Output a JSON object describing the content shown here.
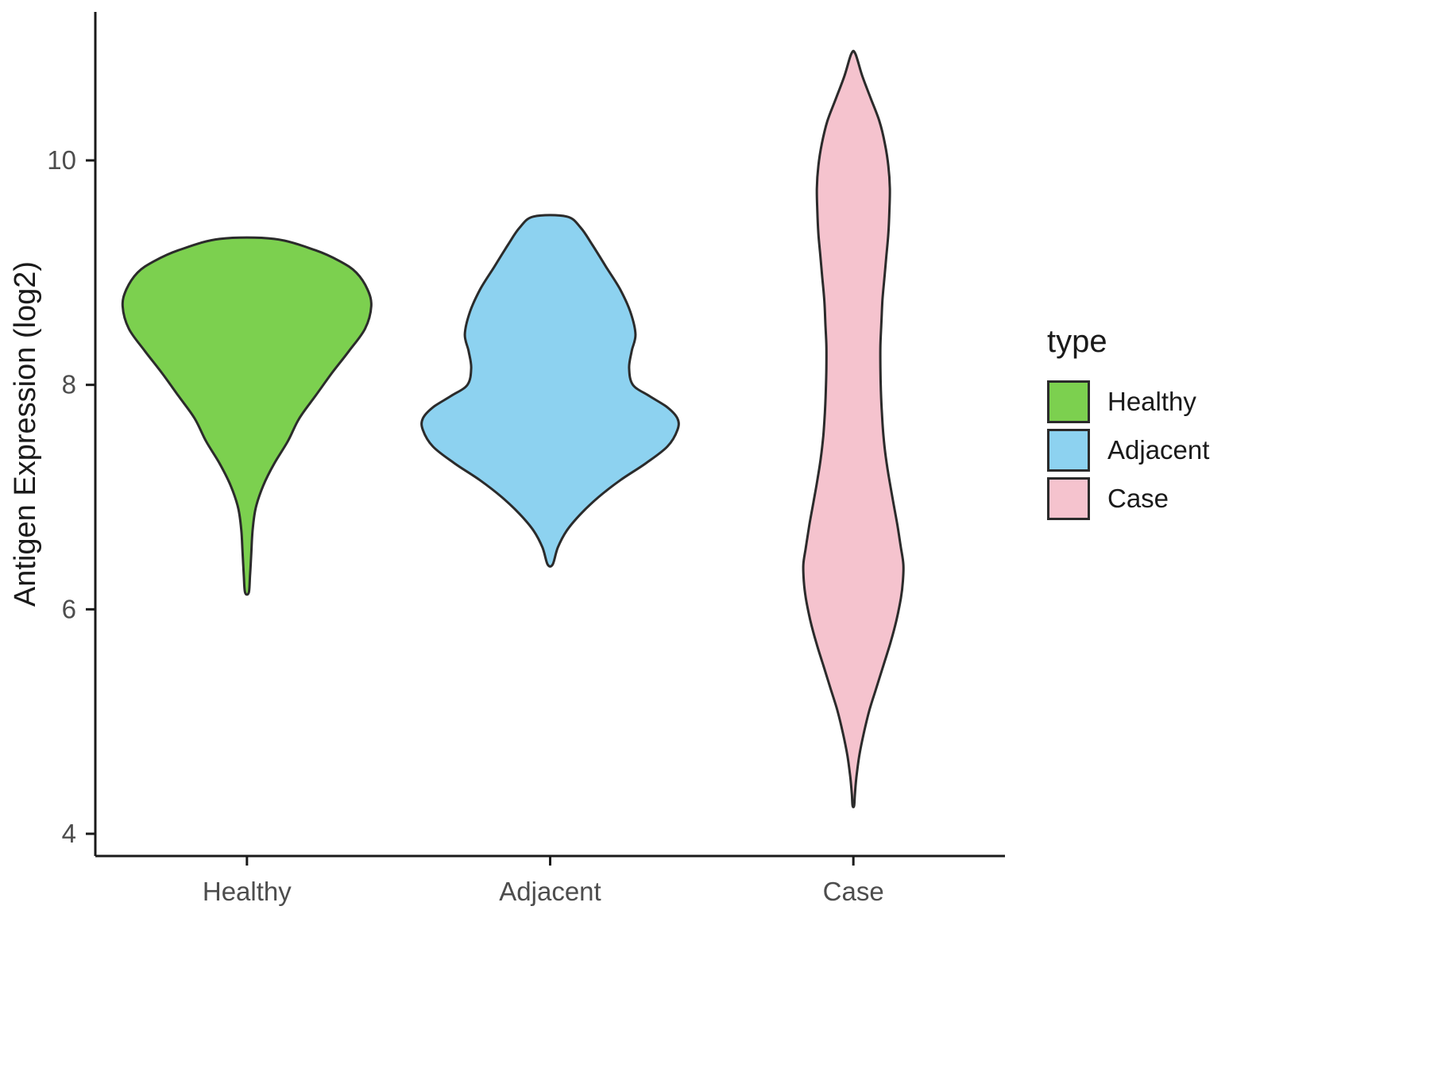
{
  "chart_data": {
    "type": "violin",
    "title": "",
    "xlabel": "",
    "ylabel": "Antigen Expression (log2)",
    "categories": [
      "Healthy",
      "Adjacent",
      "Case"
    ],
    "ylim": [
      3.8,
      11.3
    ],
    "yticks": [
      4,
      6,
      8,
      10
    ],
    "grid": false,
    "axis_color": "#1a1a1a",
    "tick_text_color": "#4d4d4d",
    "stroke_color": "#2b2b2b",
    "legend": {
      "title": "type",
      "position": "right",
      "entries": [
        {
          "label": "Healthy",
          "color": "#7CD04F"
        },
        {
          "label": "Adjacent",
          "color": "#8DD2F0"
        },
        {
          "label": "Case",
          "color": "#F5C3CE"
        }
      ]
    },
    "violins": [
      {
        "name": "Healthy",
        "color": "#7CD04F",
        "max_width": 0.82,
        "points": [
          [
            9.3,
            0.22
          ],
          [
            9.2,
            0.55
          ],
          [
            9.1,
            0.75
          ],
          [
            9.0,
            0.88
          ],
          [
            8.85,
            0.97
          ],
          [
            8.7,
            1.0
          ],
          [
            8.5,
            0.95
          ],
          [
            8.3,
            0.82
          ],
          [
            8.1,
            0.68
          ],
          [
            7.9,
            0.55
          ],
          [
            7.7,
            0.42
          ],
          [
            7.5,
            0.33
          ],
          [
            7.3,
            0.22
          ],
          [
            7.1,
            0.13
          ],
          [
            6.9,
            0.07
          ],
          [
            6.7,
            0.045
          ],
          [
            6.5,
            0.035
          ],
          [
            6.3,
            0.025
          ],
          [
            6.15,
            0.015
          ]
        ]
      },
      {
        "name": "Adjacent",
        "color": "#8DD2F0",
        "max_width": 0.84,
        "points": [
          [
            9.5,
            0.13
          ],
          [
            9.4,
            0.24
          ],
          [
            9.25,
            0.33
          ],
          [
            9.05,
            0.44
          ],
          [
            8.85,
            0.55
          ],
          [
            8.65,
            0.63
          ],
          [
            8.45,
            0.67
          ],
          [
            8.3,
            0.64
          ],
          [
            8.15,
            0.62
          ],
          [
            8.0,
            0.65
          ],
          [
            7.9,
            0.78
          ],
          [
            7.8,
            0.92
          ],
          [
            7.7,
            1.0
          ],
          [
            7.6,
            1.0
          ],
          [
            7.45,
            0.92
          ],
          [
            7.3,
            0.75
          ],
          [
            7.15,
            0.55
          ],
          [
            7.0,
            0.38
          ],
          [
            6.85,
            0.24
          ],
          [
            6.7,
            0.13
          ],
          [
            6.55,
            0.06
          ],
          [
            6.4,
            0.02
          ]
        ]
      },
      {
        "name": "Case",
        "color": "#F5C3CE",
        "max_width": 0.33,
        "points": [
          [
            10.95,
            0.04
          ],
          [
            10.75,
            0.18
          ],
          [
            10.55,
            0.35
          ],
          [
            10.35,
            0.52
          ],
          [
            10.15,
            0.63
          ],
          [
            9.95,
            0.7
          ],
          [
            9.75,
            0.73
          ],
          [
            9.55,
            0.72
          ],
          [
            9.35,
            0.7
          ],
          [
            9.15,
            0.66
          ],
          [
            8.95,
            0.62
          ],
          [
            8.75,
            0.58
          ],
          [
            8.55,
            0.56
          ],
          [
            8.35,
            0.54
          ],
          [
            8.15,
            0.54
          ],
          [
            7.95,
            0.55
          ],
          [
            7.75,
            0.57
          ],
          [
            7.55,
            0.6
          ],
          [
            7.35,
            0.65
          ],
          [
            7.15,
            0.72
          ],
          [
            6.95,
            0.8
          ],
          [
            6.75,
            0.88
          ],
          [
            6.55,
            0.95
          ],
          [
            6.4,
            1.0
          ],
          [
            6.25,
            0.99
          ],
          [
            6.1,
            0.95
          ],
          [
            5.9,
            0.86
          ],
          [
            5.7,
            0.74
          ],
          [
            5.5,
            0.6
          ],
          [
            5.3,
            0.46
          ],
          [
            5.1,
            0.32
          ],
          [
            4.9,
            0.21
          ],
          [
            4.7,
            0.12
          ],
          [
            4.5,
            0.06
          ],
          [
            4.35,
            0.03
          ],
          [
            4.25,
            0.015
          ]
        ]
      }
    ]
  }
}
